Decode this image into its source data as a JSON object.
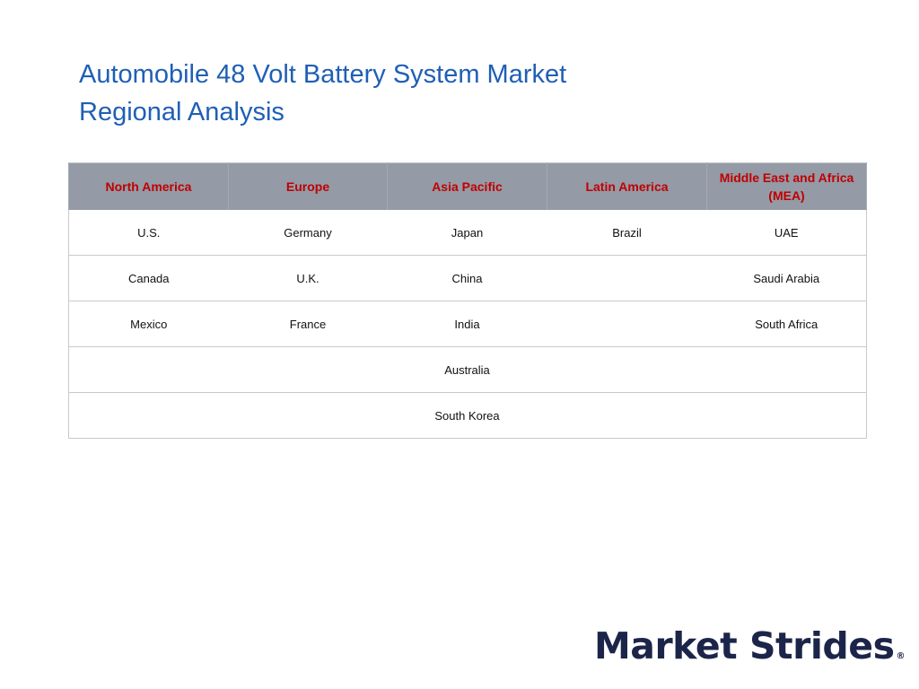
{
  "title": {
    "line1": "Automobile 48 Volt Battery System Market",
    "line2": "Regional Analysis"
  },
  "table": {
    "headers": [
      "North America",
      "Europe",
      "Asia Pacific",
      "Latin America",
      "Middle East and Africa (MEA)"
    ],
    "rows": [
      [
        "U.S.",
        "Germany",
        "Japan",
        "Brazil",
        "UAE"
      ],
      [
        "Canada",
        "U.K.",
        "China",
        "",
        "Saudi Arabia"
      ],
      [
        "Mexico",
        "France",
        "India",
        "",
        "South Africa"
      ],
      [
        "",
        "",
        "Australia",
        "",
        ""
      ],
      [
        "",
        "",
        "South Korea",
        "",
        ""
      ]
    ]
  },
  "logo": {
    "text": "Market Strides",
    "mark": "®"
  },
  "colors": {
    "title": "#1f5fb5",
    "header_bg": "#949aa6",
    "header_text": "#c00000",
    "logo": "#1c2549"
  }
}
